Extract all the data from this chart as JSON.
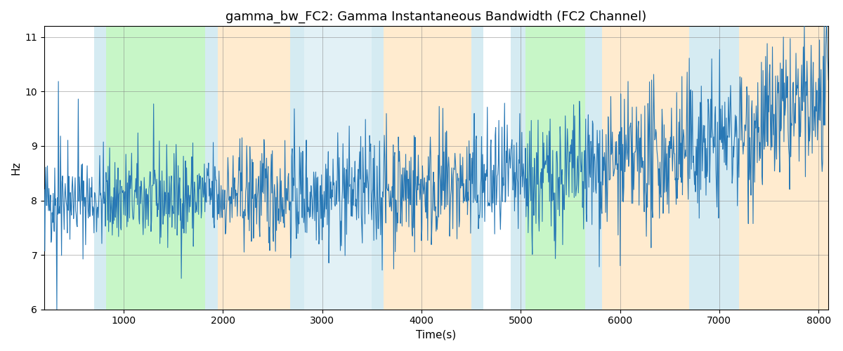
{
  "title": "gamma_bw_FC2: Gamma Instantaneous Bandwidth (FC2 Channel)",
  "xlabel": "Time(s)",
  "ylabel": "Hz",
  "xlim": [
    200,
    8100
  ],
  "ylim": [
    6,
    11.2
  ],
  "yticks": [
    6,
    7,
    8,
    9,
    10,
    11
  ],
  "xticks": [
    1000,
    2000,
    3000,
    4000,
    5000,
    6000,
    7000,
    8000
  ],
  "line_color": "#2878b5",
  "background_color": "#ffffff",
  "bands": [
    {
      "xmin": 700,
      "xmax": 820,
      "color": "#add8e6",
      "alpha": 0.5
    },
    {
      "xmin": 820,
      "xmax": 1820,
      "color": "#90ee90",
      "alpha": 0.5
    },
    {
      "xmin": 1820,
      "xmax": 1950,
      "color": "#add8e6",
      "alpha": 0.5
    },
    {
      "xmin": 1950,
      "xmax": 2680,
      "color": "#ffd9a0",
      "alpha": 0.5
    },
    {
      "xmin": 2680,
      "xmax": 2820,
      "color": "#add8e6",
      "alpha": 0.5
    },
    {
      "xmin": 2820,
      "xmax": 3500,
      "color": "#add8e6",
      "alpha": 0.35
    },
    {
      "xmin": 3500,
      "xmax": 3620,
      "color": "#add8e6",
      "alpha": 0.5
    },
    {
      "xmin": 3620,
      "xmax": 4500,
      "color": "#ffd9a0",
      "alpha": 0.5
    },
    {
      "xmin": 4500,
      "xmax": 4620,
      "color": "#add8e6",
      "alpha": 0.5
    },
    {
      "xmin": 4900,
      "xmax": 5050,
      "color": "#add8e6",
      "alpha": 0.5
    },
    {
      "xmin": 5050,
      "xmax": 5650,
      "color": "#90ee90",
      "alpha": 0.5
    },
    {
      "xmin": 5650,
      "xmax": 5820,
      "color": "#add8e6",
      "alpha": 0.5
    },
    {
      "xmin": 5820,
      "xmax": 6700,
      "color": "#ffd9a0",
      "alpha": 0.5
    },
    {
      "xmin": 6700,
      "xmax": 7200,
      "color": "#add8e6",
      "alpha": 0.5
    },
    {
      "xmin": 7200,
      "xmax": 8100,
      "color": "#ffd9a0",
      "alpha": 0.5
    }
  ],
  "seed": 42,
  "figsize": [
    12,
    5
  ],
  "dpi": 100
}
